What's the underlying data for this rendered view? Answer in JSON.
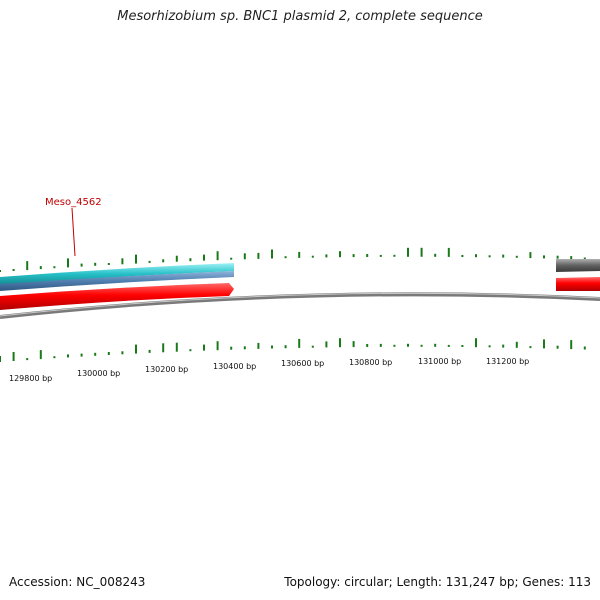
{
  "title": "Mesorhizobium sp. BNC1 plasmid 2, complete sequence",
  "gene_label": "Meso_4562",
  "ticks": [
    {
      "label": "129800 bp"
    },
    {
      "label": "130000 bp"
    },
    {
      "label": "130200 bp"
    },
    {
      "label": "130400 bp"
    },
    {
      "label": "130600 bp"
    },
    {
      "label": "130800 bp"
    },
    {
      "label": "131000 bp"
    },
    {
      "label": "131200 bp"
    }
  ],
  "footer": {
    "accession": "Accession: NC_008243",
    "summary": "Topology: circular; Length: 131,247 bp; Genes: 113"
  },
  "colors": {
    "gc_skew": "#1a7a1a",
    "backbone": "#808080",
    "gene_forward": "#ff0000",
    "cyan_track": "#30c8d0",
    "blue_track": "#4f7fb0",
    "gray_track": "#606060",
    "label": "#c00000"
  }
}
